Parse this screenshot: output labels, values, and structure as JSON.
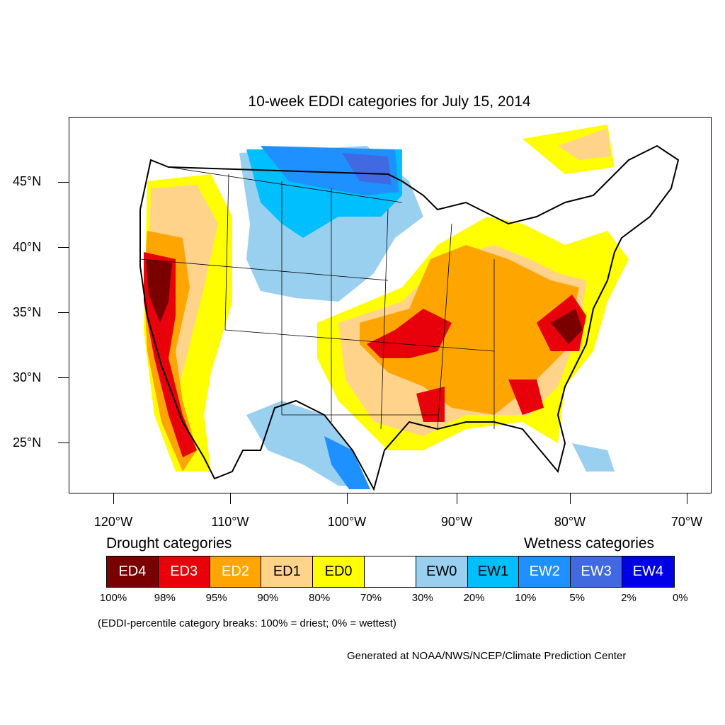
{
  "title": "10-week EDDI categories for July 15, 2014",
  "y_axis_labels": [
    "45°N",
    "40°N",
    "35°N",
    "30°N",
    "25°N"
  ],
  "x_axis_labels": [
    "120°W",
    "110°W",
    "100°W",
    "90°W",
    "80°W",
    "70°W"
  ],
  "legend": {
    "drought_heading": "Drought categories",
    "wetness_heading": "Wetness categories",
    "categories": [
      {
        "label": "ED4",
        "color": "#7a0000",
        "text_color": "#ffffff"
      },
      {
        "label": "ED3",
        "color": "#e8000b",
        "text_color": "#ffffff"
      },
      {
        "label": "ED2",
        "color": "#ffa500",
        "text_color": "#ffffff"
      },
      {
        "label": "ED1",
        "color": "#ffd38a",
        "text_color": "#000000"
      },
      {
        "label": "ED0",
        "color": "#ffff00",
        "text_color": "#000000"
      },
      {
        "label": "",
        "color": "#ffffff",
        "text_color": "#000000"
      },
      {
        "label": "EW0",
        "color": "#99d0f0",
        "text_color": "#000000"
      },
      {
        "label": "EW1",
        "color": "#00bfff",
        "text_color": "#000000"
      },
      {
        "label": "EW2",
        "color": "#1e90ff",
        "text_color": "#ffffff"
      },
      {
        "label": "EW3",
        "color": "#4169e1",
        "text_color": "#ffffff"
      },
      {
        "label": "EW4",
        "color": "#0000e6",
        "text_color": "#ffffff"
      }
    ],
    "percent_breaks": [
      "100%",
      "98%",
      "95%",
      "90%",
      "80%",
      "70%",
      "30%",
      "20%",
      "10%",
      "5%",
      "2%",
      "0%"
    ],
    "note": "(EDDI-percentile category breaks: 100% = driest; 0% = wettest)"
  },
  "credit": "Generated at NOAA/NWS/NCEP/Climate Prediction Center"
}
